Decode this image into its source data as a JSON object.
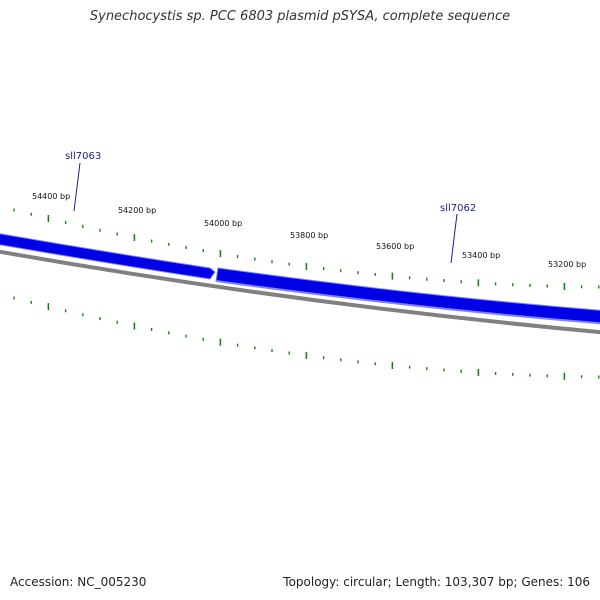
{
  "title": "Synechocystis sp. PCC 6803 plasmid pSYSA, complete sequence",
  "footer": {
    "accession": "Accession: NC_005230",
    "summary": "Topology: circular; Length: 103,307 bp; Genes: 106"
  },
  "colors": {
    "gene": "#0000e6",
    "gene_highlight": "#8080ff",
    "backbone": "#808080",
    "tick": "#118811",
    "label": "#1a1aa0"
  },
  "ruler": {
    "labels": [
      "54400 bp",
      "54200 bp",
      "54000 bp",
      "53800 bp",
      "53600 bp",
      "53400 bp",
      "53200 bp"
    ]
  },
  "genes": [
    {
      "name": "sll7063",
      "strand": "reverse"
    },
    {
      "name": "sll7062",
      "strand": "reverse"
    }
  ]
}
